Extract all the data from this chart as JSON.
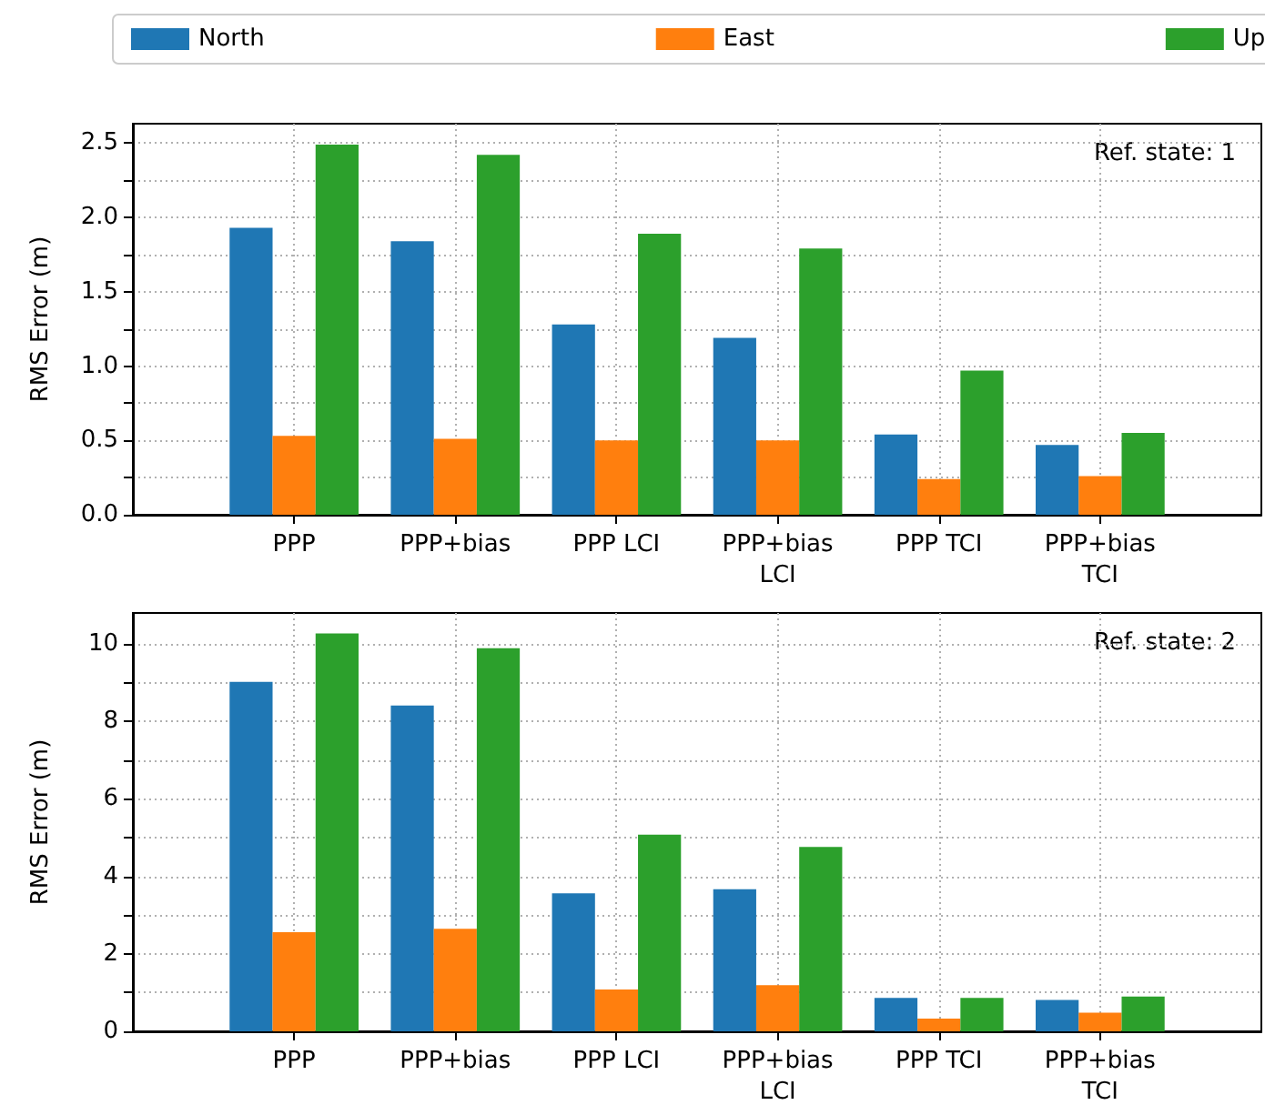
{
  "chart_data": [
    {
      "type": "bar",
      "ylabel": "RMS Error (m)",
      "annotations": [
        "Ref. state: 1"
      ],
      "categories": [
        "PPP",
        "PPP+bias",
        "PPP LCI",
        "PPP+bias\nLCI",
        "PPP TCI",
        "PPP+bias\nTCI"
      ],
      "series": [
        {
          "name": "North",
          "color": "#1f77b4",
          "values": [
            1.93,
            1.84,
            1.28,
            1.19,
            0.54,
            0.47
          ]
        },
        {
          "name": "East",
          "color": "#ff7f0e",
          "values": [
            0.53,
            0.51,
            0.5,
            0.5,
            0.24,
            0.26
          ]
        },
        {
          "name": "Up",
          "color": "#2ca02c",
          "values": [
            2.49,
            2.42,
            1.89,
            1.79,
            0.97,
            0.55
          ]
        }
      ],
      "ylim": [
        0,
        2.63
      ],
      "yticks": [
        {
          "value": 0,
          "label": "0.0"
        },
        {
          "value": 0.25,
          "label": null
        },
        {
          "value": 0.5,
          "label": "0.5"
        },
        {
          "value": 0.75,
          "label": null
        },
        {
          "value": 1,
          "label": "1.0"
        },
        {
          "value": 1.25,
          "label": null
        },
        {
          "value": 1.5,
          "label": "1.5"
        },
        {
          "value": 1.75,
          "label": null
        },
        {
          "value": 2,
          "label": "2.0"
        },
        {
          "value": 2.25,
          "label": null
        },
        {
          "value": 2.5,
          "label": "2.5"
        }
      ],
      "grid": true,
      "legend": "top"
    },
    {
      "type": "bar",
      "ylabel": "RMS Error (m)",
      "annotations": [
        "Ref. state: 2"
      ],
      "categories": [
        "PPP",
        "PPP+bias",
        "PPP LCI",
        "PPP+bias\nLCI",
        "PPP TCI",
        "PPP+bias\nTCI"
      ],
      "series": [
        {
          "color": "#1f77b4",
          "values": [
            9.02,
            8.41,
            3.56,
            3.67,
            0.86,
            0.81
          ]
        },
        {
          "color": "#ff7f0e",
          "values": [
            2.56,
            2.65,
            1.08,
            1.19,
            0.33,
            0.48
          ]
        },
        {
          "color": "#2ca02c",
          "values": [
            10.27,
            9.89,
            5.08,
            4.76,
            0.86,
            0.9
          ]
        }
      ],
      "ylim": [
        0,
        10.8
      ],
      "yticks": [
        0,
        {
          "value": 1,
          "label": null
        },
        2,
        {
          "value": 3,
          "label": null
        },
        4,
        {
          "value": 5,
          "label": null
        },
        6,
        {
          "value": 7,
          "label": null
        },
        8,
        {
          "value": 9,
          "label": null
        },
        10
      ],
      "grid": true
    }
  ]
}
